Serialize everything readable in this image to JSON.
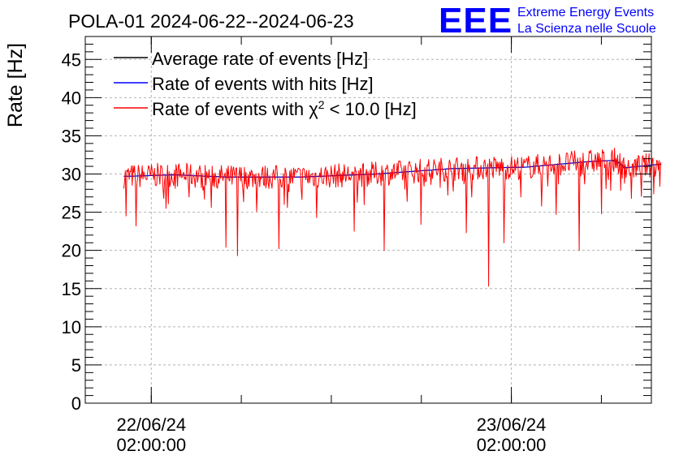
{
  "logo": {
    "mark": "EEE",
    "line1": "Extreme Energy Events",
    "line2": "La Scienza nelle Scuole",
    "color": "#0000ff"
  },
  "chart_data": {
    "type": "line",
    "title": "POLA-01 2024-06-22--2024-06-23",
    "ylabel": "Rate [Hz]",
    "xlabel": "",
    "ylim": [
      0,
      48
    ],
    "yticks": [
      0,
      5,
      10,
      15,
      20,
      25,
      30,
      35,
      40,
      45
    ],
    "xlim": [
      "2024-06-21 21:36",
      "2024-06-23 11:20"
    ],
    "xticks": [
      {
        "date": "22/06/24",
        "time": "02:00:00",
        "at": "2024-06-22 02:00"
      },
      {
        "date": "23/06/24",
        "time": "02:00:00",
        "at": "2024-06-23 02:00"
      }
    ],
    "x_minor_every_hours": 6,
    "grid": true,
    "legend_position": "top-left",
    "data_start": "2024-06-22 00:10",
    "data_end": "2024-06-23 12:00",
    "series": [
      {
        "name": "Average rate of events [Hz]",
        "color": "#000000",
        "mean_start": 29.7,
        "mean_end": 31.4,
        "x": [
          "2024-06-22 00:30",
          "2024-06-22 03:30",
          "2024-06-22 07:00",
          "2024-06-22 12:00",
          "2024-06-22 17:00",
          "2024-06-22 22:00",
          "2024-06-23 03:00",
          "2024-06-23 07:00",
          "2024-06-23 09:00",
          "2024-06-23 09:30",
          "2024-06-23 12:00"
        ],
        "y": [
          29.7,
          29.9,
          29.6,
          29.6,
          30.0,
          30.7,
          30.9,
          31.6,
          31.8,
          30.8,
          31.3
        ]
      },
      {
        "name": "Rate of events with hits [Hz]",
        "color": "#0000ff",
        "x": [
          "2024-06-22 00:30",
          "2024-06-22 12:00",
          "2024-06-23 00:00",
          "2024-06-23 12:00"
        ],
        "y": [
          29.7,
          29.6,
          30.8,
          31.3
        ]
      },
      {
        "name": "Rate of events with χ² < 10.0 [Hz]",
        "color": "#ff0000",
        "fluctuation": [
          28.5,
          32.5
        ],
        "dips": [
          {
            "x": "2024-06-22 00:20",
            "y": 24.5
          },
          {
            "x": "2024-06-22 01:00",
            "y": 23.2
          },
          {
            "x": "2024-06-22 03:00",
            "y": 25.5
          },
          {
            "x": "2024-06-22 04:30",
            "y": 27.0
          },
          {
            "x": "2024-06-22 06:00",
            "y": 25.6
          },
          {
            "x": "2024-06-22 07:00",
            "y": 20.4
          },
          {
            "x": "2024-06-22 07:45",
            "y": 19.3
          },
          {
            "x": "2024-06-22 09:00",
            "y": 25.1
          },
          {
            "x": "2024-06-22 10:30",
            "y": 20.2
          },
          {
            "x": "2024-06-22 13:00",
            "y": 24.3
          },
          {
            "x": "2024-06-22 15:30",
            "y": 22.5
          },
          {
            "x": "2024-06-22 17:30",
            "y": 20.0
          },
          {
            "x": "2024-06-22 20:00",
            "y": 23.4
          },
          {
            "x": "2024-06-22 23:00",
            "y": 22.3
          },
          {
            "x": "2024-06-23 00:30",
            "y": 15.3
          },
          {
            "x": "2024-06-23 01:30",
            "y": 21.0
          },
          {
            "x": "2024-06-23 04:00",
            "y": 25.8
          },
          {
            "x": "2024-06-23 05:00",
            "y": 24.7
          },
          {
            "x": "2024-06-23 06:30",
            "y": 20.0
          },
          {
            "x": "2024-06-23 08:00",
            "y": 24.8
          },
          {
            "x": "2024-06-23 10:00",
            "y": 26.8
          },
          {
            "x": "2024-06-23 11:30",
            "y": 27.4
          }
        ]
      }
    ]
  }
}
